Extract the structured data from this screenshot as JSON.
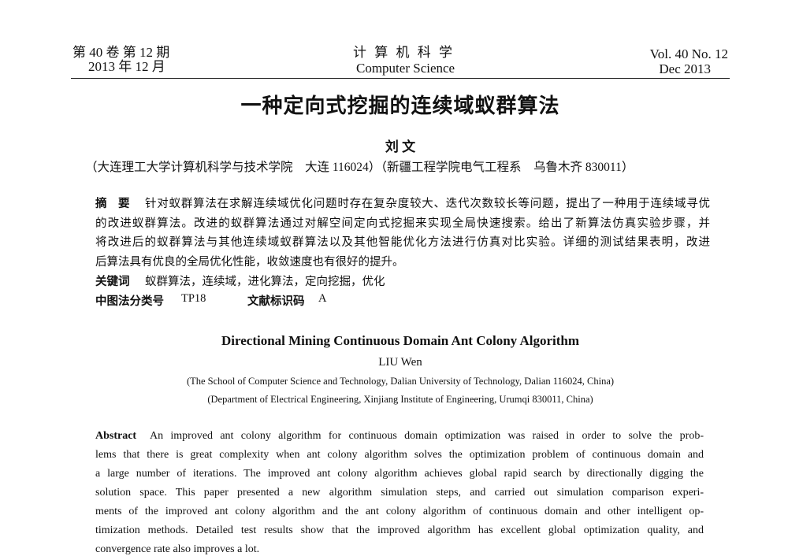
{
  "header": {
    "left": [
      "第 40 卷  第 12 期",
      "2013 年 12 月"
    ],
    "center": [
      "计 算 机 科 学",
      "Computer  Science"
    ],
    "right": [
      "Vol. 40 No. 12",
      "Dec 2013"
    ]
  },
  "title": "一种定向式挖掘的连续域蚁群算法",
  "author": "刘 文",
  "affiliation": "（大连理工大学计算机科学与技术学院　大连 116024）（新疆工程学院电气工程系　乌鲁木齐 830011）",
  "abstract": {
    "label": "摘　要",
    "lines": [
      "针对蚁群算法在求解连续域优化问题时存在复杂度较大、迭代次数较长等问题，提出了一种用于连续域寻优",
      "的改进蚁群算法。改进的蚁群算法通过对解空间定向式挖掘来实现全局快速搜索。给出了新算法仿真实验步骤，并",
      "将改进后的蚁群算法与其他连续域蚁群算法以及其他智能优化方法进行仿真对比实验。详细的测试结果表明，改进",
      "后算法具有优良的全局优化性能，收敛速度也有很好的提升。"
    ]
  },
  "keywords": {
    "label": "关键词",
    "text": "蚁群算法，连续域，进化算法，定向挖掘，优化"
  },
  "classification": {
    "label": "中图法分类号",
    "value": "TP18",
    "doc_label": "文献标识码",
    "doc_value": "A"
  },
  "english": {
    "title": "Directional Mining Continuous Domain Ant Colony Algorithm",
    "author": "LIU Wen",
    "affiliations": [
      "(The School of Computer Science and Technology, Dalian University of Technology, Dalian 116024, China)",
      "(Department of Electrical Engineering, Xinjiang Institute of Engineering, Urumqi 830011, China)"
    ],
    "abstract_label": "Abstract",
    "abstract_lines": [
      "An improved ant colony algorithm for continuous domain optimization was raised in order to solve the prob-",
      "lems that there is great complexity when ant colony algorithm solves the optimization problem of continuous domain and",
      "a large number of iterations. The improved ant colony algorithm achieves global rapid search by directionally digging the",
      "solution space. This paper presented a new algorithm simulation steps, and carried out simulation comparison experi-",
      "ments of the improved ant colony algorithm and the ant colony algorithm of continuous domain and other intelligent op-",
      "timization methods. Detailed test results show that the improved algorithm has excellent global optimization quality, and",
      "convergence rate also improves a lot."
    ]
  }
}
